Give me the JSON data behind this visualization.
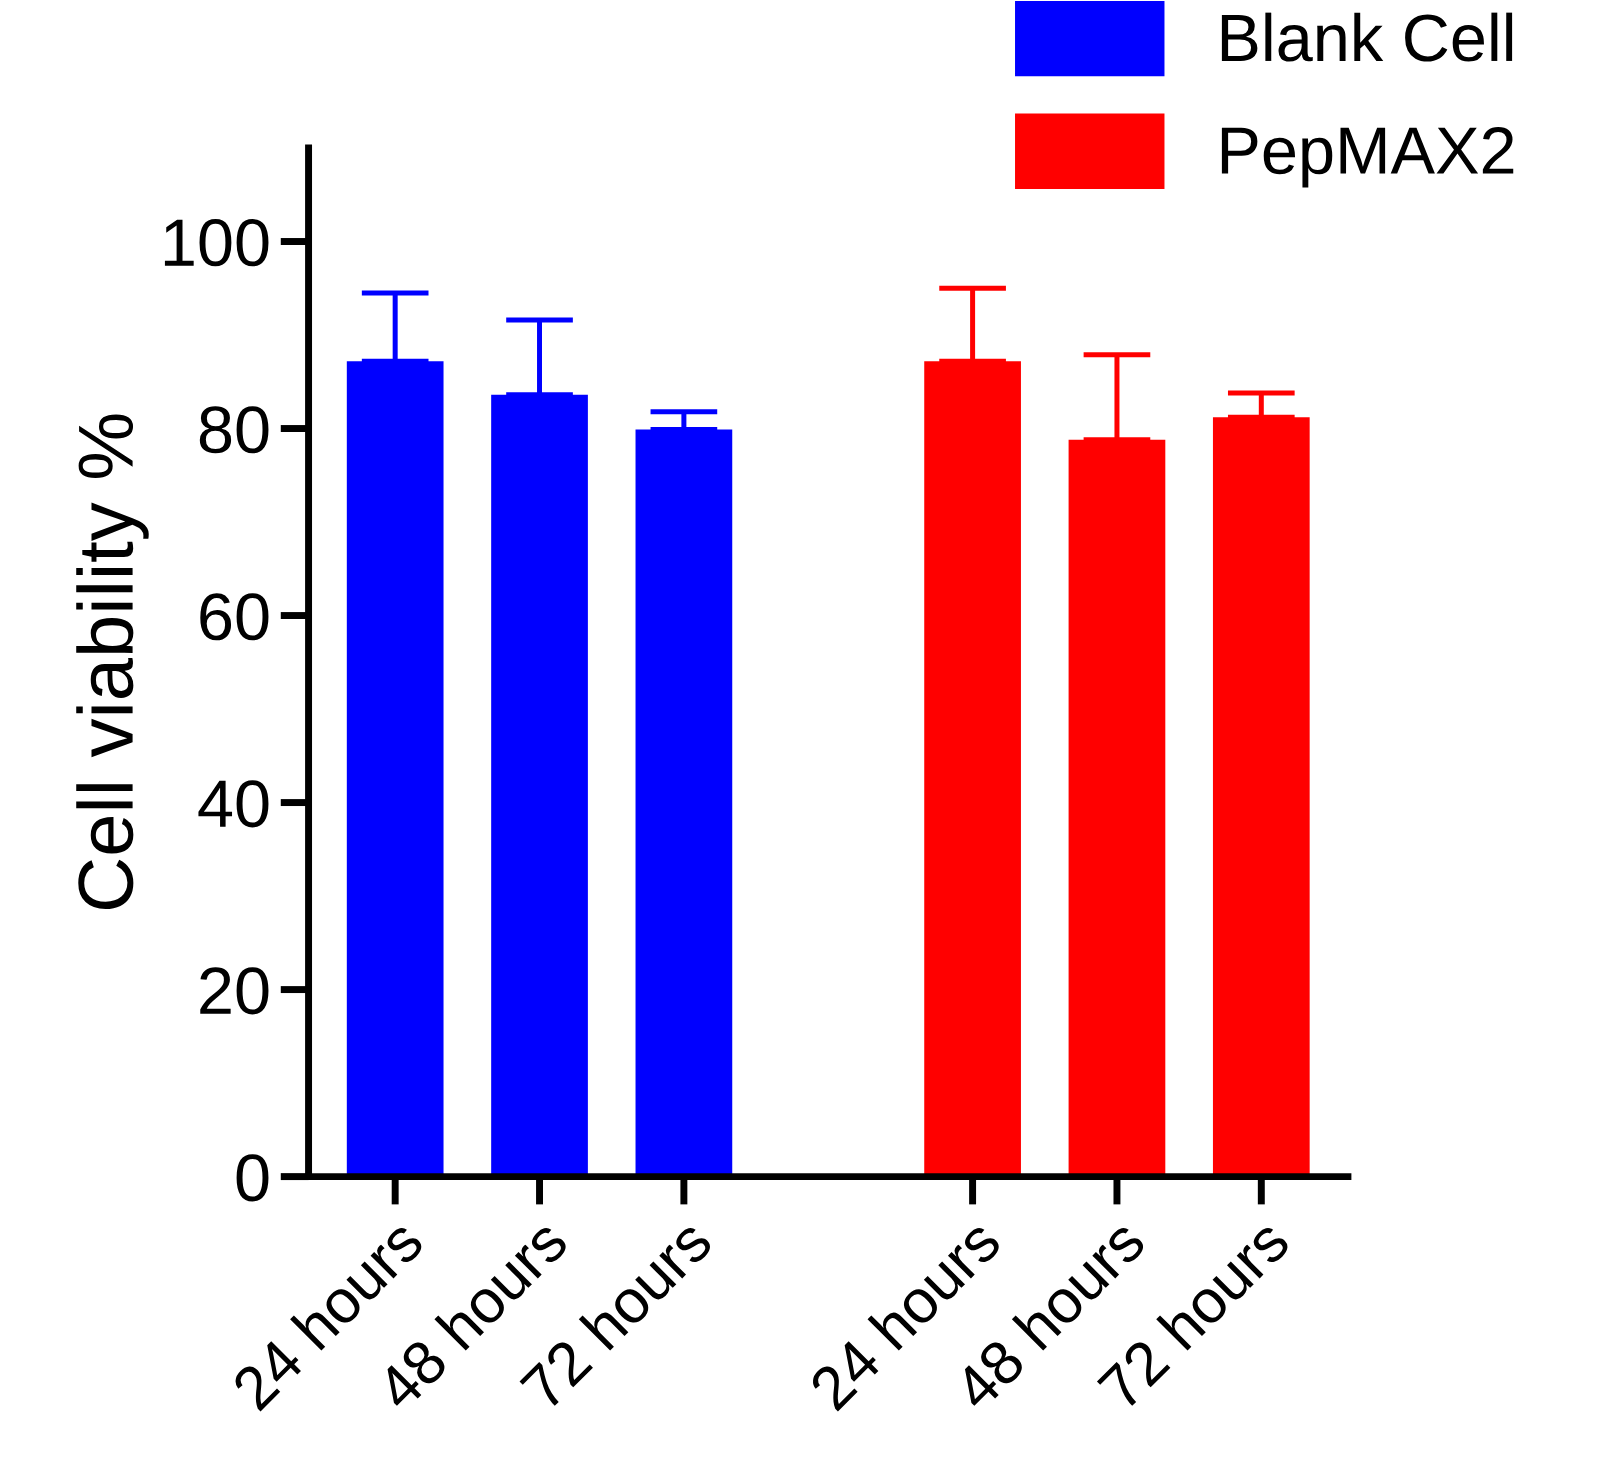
{
  "chart_data": {
    "type": "bar",
    "ylabel": "Cell viability %",
    "categories": [
      "24 hours",
      "48 hours",
      "72 hours",
      null,
      "24 hours",
      "48 hours",
      "72 hours"
    ],
    "series": [
      {
        "name": "Blank Cell",
        "color": "#0000ff",
        "values": [
          87.2,
          83.6,
          79.9,
          null,
          null,
          null,
          null
        ],
        "errors": [
          [
            87.2,
            94.5
          ],
          [
            83.6,
            91.6
          ],
          [
            79.9,
            81.8
          ],
          null,
          null,
          null,
          null
        ]
      },
      {
        "name": "PepMAX2",
        "color": "#ff0000",
        "values": [
          null,
          null,
          null,
          null,
          87.2,
          78.8,
          81.2
        ],
        "errors": [
          null,
          null,
          null,
          null,
          [
            87.2,
            95.0
          ],
          [
            78.8,
            87.9
          ],
          [
            81.2,
            83.8
          ]
        ]
      }
    ],
    "ylim": [
      0,
      110
    ],
    "yticks": [
      0,
      20,
      40,
      60,
      80,
      100
    ],
    "grid": false,
    "legend": "top right"
  }
}
